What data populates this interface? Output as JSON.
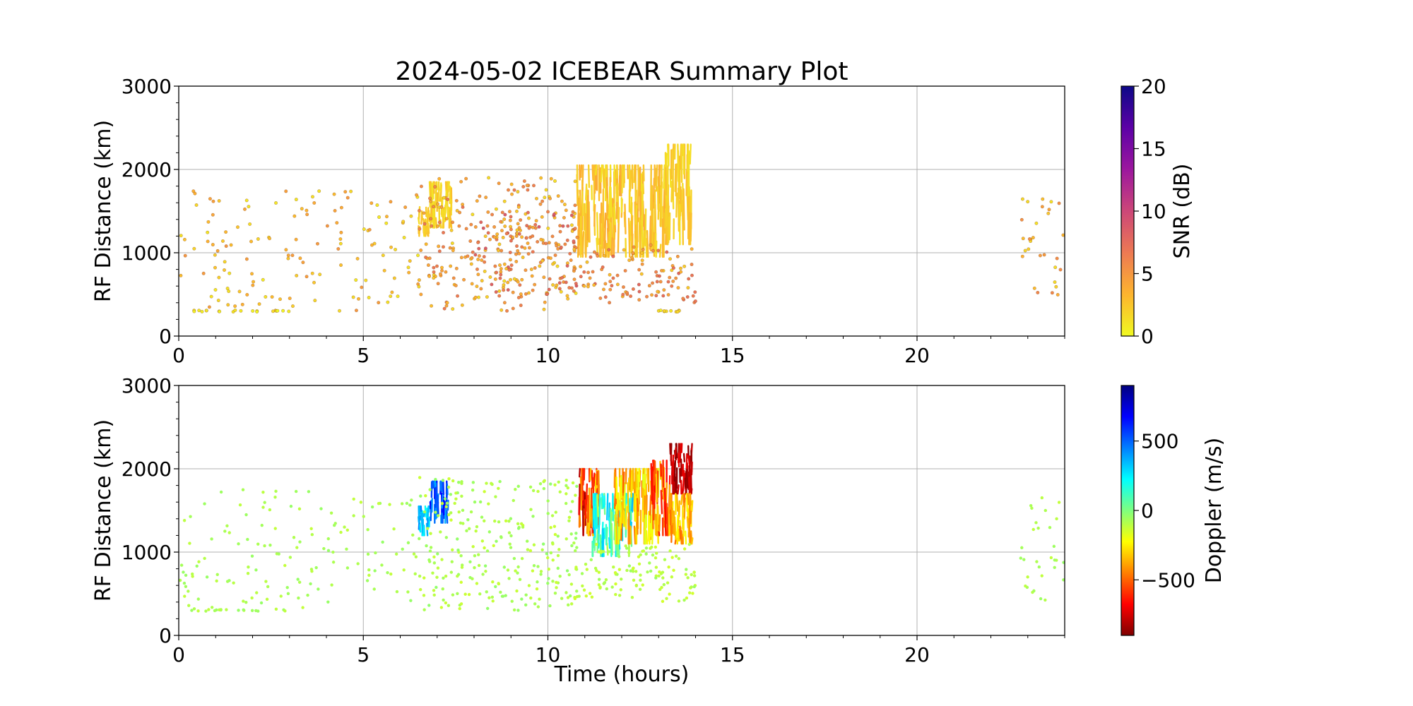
{
  "figure_title": "2024-05-02 ICEBEAR Summary Plot",
  "chart_data": [
    {
      "type": "scatter",
      "name": "snr-panel",
      "title": "2024-05-02 ICEBEAR Summary Plot",
      "xlabel": "",
      "ylabel": "RF Distance (km)",
      "xlim": [
        0,
        24
      ],
      "ylim": [
        0,
        3000
      ],
      "xticks": [
        0,
        5,
        10,
        15,
        20
      ],
      "yticks": [
        0,
        1000,
        2000,
        3000
      ],
      "grid": true,
      "colorbar": {
        "label": "SNR (dB)",
        "range": [
          0,
          20
        ],
        "ticks": [
          0,
          5,
          10,
          15,
          20
        ],
        "colormap": "plasma_r",
        "stops": [
          "#f0f921",
          "#fdb42f",
          "#ed7953",
          "#cc4778",
          "#9c179e",
          "#5c01a6",
          "#0d0887"
        ]
      },
      "clusters": [
        {
          "x": [
            0.0,
            3.2
          ],
          "y": [
            300,
            1750
          ],
          "n": 70,
          "value": [
            0.5,
            5
          ]
        },
        {
          "x": [
            0.3,
            3.0
          ],
          "y": [
            290,
            310
          ],
          "n": 18,
          "value": [
            0,
            2
          ]
        },
        {
          "x": [
            3.0,
            6.5
          ],
          "y": [
            300,
            1750
          ],
          "n": 70,
          "value": [
            0.5,
            5
          ]
        },
        {
          "x": [
            6.5,
            10.8
          ],
          "y": [
            300,
            1900
          ],
          "n": 240,
          "value": [
            1,
            7
          ]
        },
        {
          "x": [
            8.0,
            10.8
          ],
          "y": [
            500,
            1500
          ],
          "n": 120,
          "value": [
            2,
            9
          ]
        },
        {
          "x": [
            10.7,
            14.0
          ],
          "y": [
            400,
            1100
          ],
          "n": 110,
          "value": [
            2,
            8
          ]
        },
        {
          "x": [
            13.0,
            13.6
          ],
          "y": [
            290,
            310
          ],
          "n": 10,
          "value": [
            0,
            2
          ]
        },
        {
          "x": [
            22.8,
            24.0
          ],
          "y": [
            420,
            1700
          ],
          "n": 30,
          "value": [
            1,
            6
          ]
        }
      ],
      "bands": [
        {
          "x": [
            6.5,
            6.8
          ],
          "y": [
            1200,
            1550
          ],
          "value": [
            1,
            3
          ]
        },
        {
          "x": [
            6.8,
            7.4
          ],
          "y": [
            1300,
            1850
          ],
          "value": [
            1,
            3
          ]
        },
        {
          "x": [
            10.8,
            13.2
          ],
          "y": [
            950,
            2050
          ],
          "value": [
            1,
            4
          ]
        },
        {
          "x": [
            13.2,
            13.9
          ],
          "y": [
            1100,
            2300
          ],
          "value": [
            1,
            3
          ]
        }
      ]
    },
    {
      "type": "scatter",
      "name": "doppler-panel",
      "title": "",
      "xlabel": "Time (hours)",
      "ylabel": "RF Distance (km)",
      "xlim": [
        0,
        24
      ],
      "ylim": [
        0,
        3000
      ],
      "xticks": [
        0,
        5,
        10,
        15,
        20
      ],
      "yticks": [
        0,
        1000,
        2000,
        3000
      ],
      "grid": true,
      "colorbar": {
        "label": "Doppler (m/s)",
        "range": [
          -900,
          900
        ],
        "ticks": [
          -500,
          0,
          500
        ],
        "tick_labels": [
          "−500",
          "0",
          "500"
        ],
        "colormap": "jet_r",
        "stops": [
          "#7f0000",
          "#ff0000",
          "#ff7f00",
          "#ffff00",
          "#7fff7f",
          "#00ffff",
          "#007fff",
          "#0000ff",
          "#00007f"
        ]
      },
      "clusters": [
        {
          "x": [
            0.0,
            6.5
          ],
          "y": [
            300,
            1750
          ],
          "n": 140,
          "value": [
            -120,
            -40
          ]
        },
        {
          "x": [
            0.3,
            3.0
          ],
          "y": [
            290,
            310
          ],
          "n": 18,
          "value": [
            -120,
            -40
          ]
        },
        {
          "x": [
            6.5,
            10.8
          ],
          "y": [
            300,
            1900
          ],
          "n": 260,
          "value": [
            -140,
            -30
          ]
        },
        {
          "x": [
            10.7,
            14.0
          ],
          "y": [
            400,
            1100
          ],
          "n": 120,
          "value": [
            -150,
            -50
          ]
        },
        {
          "x": [
            22.8,
            24.0
          ],
          "y": [
            420,
            1700
          ],
          "n": 30,
          "value": [
            -120,
            -40
          ]
        }
      ],
      "bands": [
        {
          "x": [
            6.5,
            6.8
          ],
          "y": [
            1200,
            1550
          ],
          "value": [
            200,
            450
          ]
        },
        {
          "x": [
            6.8,
            7.3
          ],
          "y": [
            1350,
            1850
          ],
          "value": [
            350,
            700
          ]
        },
        {
          "x": [
            10.8,
            11.4
          ],
          "y": [
            1200,
            2000
          ],
          "value": [
            -850,
            -250
          ]
        },
        {
          "x": [
            11.2,
            12.3
          ],
          "y": [
            950,
            1700
          ],
          "value": [
            -100,
            350
          ]
        },
        {
          "x": [
            11.8,
            13.0
          ],
          "y": [
            1100,
            2000
          ],
          "value": [
            -500,
            -150
          ]
        },
        {
          "x": [
            12.8,
            13.3
          ],
          "y": [
            1200,
            2100
          ],
          "value": [
            -700,
            -300
          ]
        },
        {
          "x": [
            13.3,
            13.9
          ],
          "y": [
            1700,
            2300
          ],
          "value": [
            -900,
            -700
          ]
        },
        {
          "x": [
            13.3,
            13.9
          ],
          "y": [
            1100,
            1700
          ],
          "value": [
            -500,
            -200
          ]
        }
      ]
    }
  ]
}
